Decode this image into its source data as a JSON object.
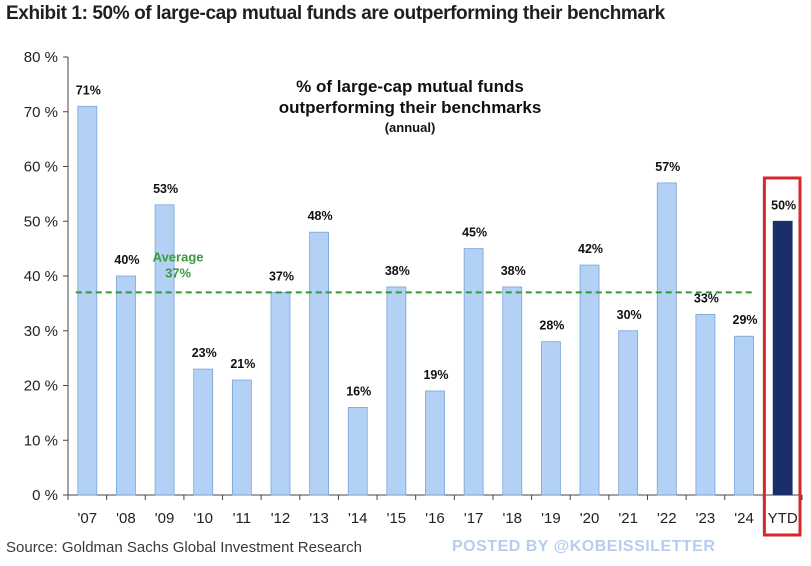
{
  "header": {
    "exhibit_title": "Exhibit 1: 50% of large-cap mutual funds are outperforming their benchmark"
  },
  "footer": {
    "source": "Source: Goldman Sachs Global Investment Research",
    "watermark": "POSTED BY @KOBEISSILETTER"
  },
  "colors": {
    "bar": "#b3d1f5",
    "bar_outline": "#7aa3d8",
    "highlight_bar": "#1a2e6b",
    "highlight_box": "#d9262b",
    "average_line": "#2f9a2f"
  },
  "chart_data": {
    "type": "bar",
    "title": "% of large-cap mutual funds outperforming their benchmarks",
    "title_lines": [
      "% of large-cap mutual funds",
      "outperforming their benchmarks"
    ],
    "subtitle": "(annual)",
    "categories": [
      "'07",
      "'08",
      "'09",
      "'10",
      "'11",
      "'12",
      "'13",
      "'14",
      "'15",
      "'16",
      "'17",
      "'18",
      "'19",
      "'20",
      "'21",
      "'22",
      "'23",
      "'24",
      "YTD"
    ],
    "values": [
      71,
      40,
      53,
      23,
      21,
      37,
      48,
      16,
      38,
      19,
      45,
      38,
      28,
      42,
      30,
      57,
      33,
      29,
      50
    ],
    "data_labels": [
      "71%",
      "40%",
      "53%",
      "23%",
      "21%",
      "37%",
      "48%",
      "16%",
      "38%",
      "19%",
      "45%",
      "38%",
      "28%",
      "42%",
      "30%",
      "57%",
      "33%",
      "29%",
      "50%"
    ],
    "highlight_category": "YTD",
    "yticks": [
      0,
      10,
      20,
      30,
      40,
      50,
      60,
      70,
      80
    ],
    "ytick_labels": [
      "0 %",
      "10 %",
      "20 %",
      "30 %",
      "40 %",
      "50 %",
      "60 %",
      "70 %",
      "80 %"
    ],
    "ylim": [
      0,
      80
    ],
    "average": {
      "value": 37,
      "label": "Average",
      "value_label": "37%"
    },
    "grid": false
  }
}
